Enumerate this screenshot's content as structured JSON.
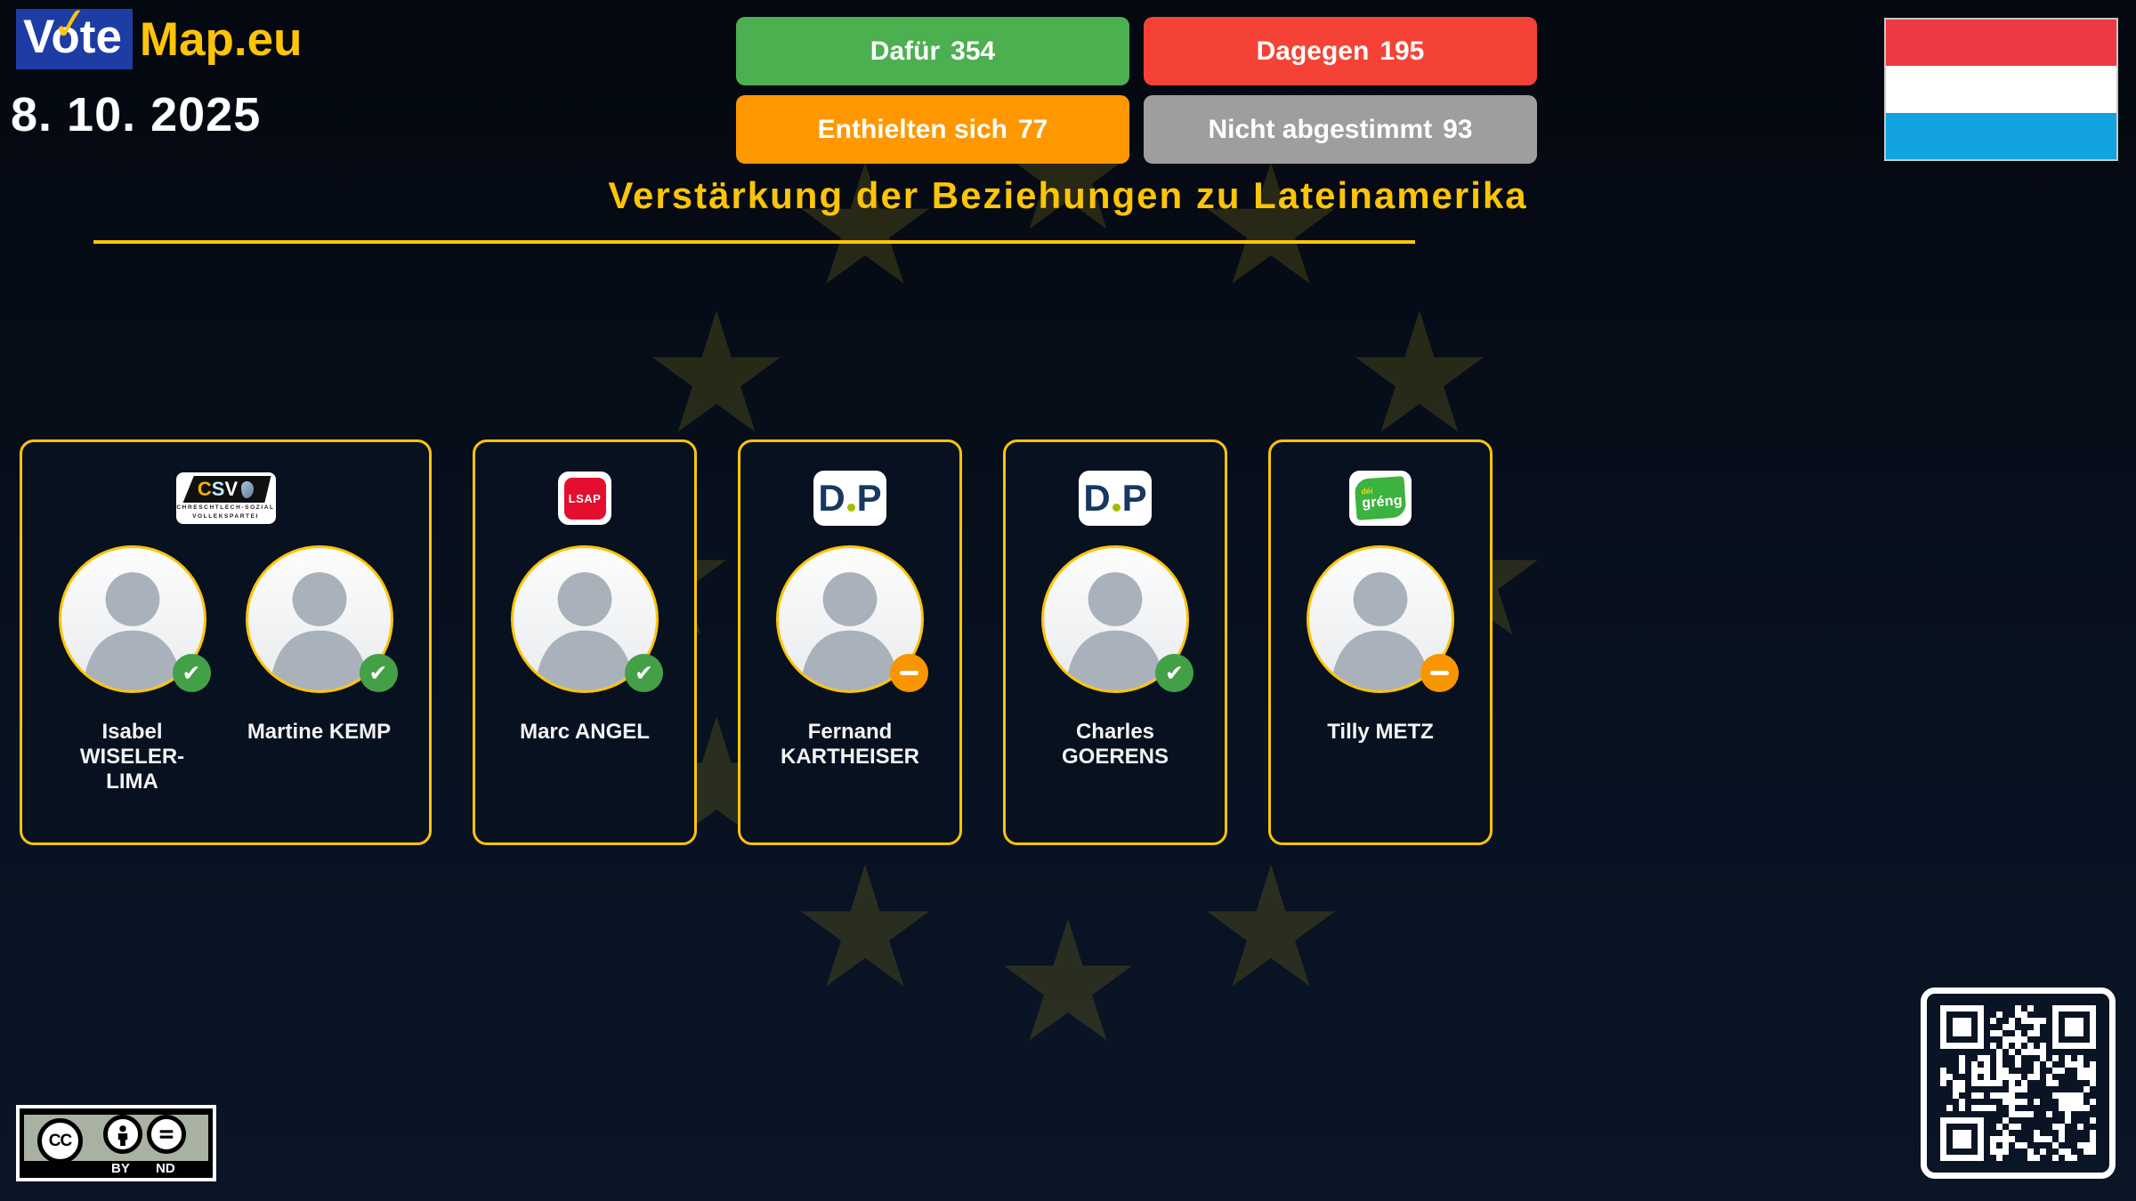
{
  "logo": {
    "vote": "Vote",
    "map": "Map.eu"
  },
  "icons": {
    "logo_check": "✓",
    "vote_for": "✔",
    "vote_abstain": "–"
  },
  "header": {
    "date": "8. 10. 2025",
    "results": [
      {
        "label": "Dafür",
        "count": "354"
      },
      {
        "label": "Dagegen",
        "count": "195"
      },
      {
        "label": "Enthielten sich",
        "count": "77"
      },
      {
        "label": "Nicht abgestimmt",
        "count": "93"
      }
    ],
    "flag_country": "Luxembourg"
  },
  "title": "Verstärkung der Beziehungen zu Lateinamerika",
  "parties": {
    "csv": {
      "c": "C",
      "s": "S",
      "v": "V",
      "line1": "CHRESCHTLECH-SOZIAL",
      "line2": "VOLLEKSPARTEI"
    },
    "lsap": {
      "label": "LSAP"
    },
    "dp": {
      "d": "D",
      "p": "P"
    },
    "greng": {
      "dei": "déi",
      "greng": "gréng"
    }
  },
  "cards": [
    {
      "party": "CSV",
      "members": [
        {
          "name": "Isabel WISELER-LIMA",
          "vote": "for"
        },
        {
          "name": "Martine KEMP",
          "vote": "for"
        }
      ]
    },
    {
      "party": "LSAP",
      "members": [
        {
          "name": "Marc ANGEL",
          "vote": "for"
        }
      ]
    },
    {
      "party": "DP",
      "members": [
        {
          "name": "Fernand KARTHEISER",
          "vote": "abstain"
        }
      ]
    },
    {
      "party": "DP",
      "members": [
        {
          "name": "Charles GOERENS",
          "vote": "for"
        }
      ]
    },
    {
      "party": "déi gréng",
      "members": [
        {
          "name": "Tilly METZ",
          "vote": "abstain"
        }
      ]
    }
  ],
  "footer": {
    "license": {
      "cc": "CC",
      "by": "BY",
      "nd": "ND"
    }
  },
  "colors": {
    "gold": "#fdc408",
    "green": "#4caf50",
    "red": "#f44336",
    "orange": "#ff9800",
    "gray": "#9e9e9e",
    "badge_green": "#43a047",
    "badge_orange": "#f99500",
    "flag_red": "#ee3a44",
    "flag_white": "#ffffff",
    "flag_blue": "#12a3e0",
    "logo_blue": "#1d3da5",
    "bg1": "#04080f",
    "bg2": "#0a1526",
    "card_bg": "#081120",
    "star": "rgba(130,120,25,0.28)"
  }
}
